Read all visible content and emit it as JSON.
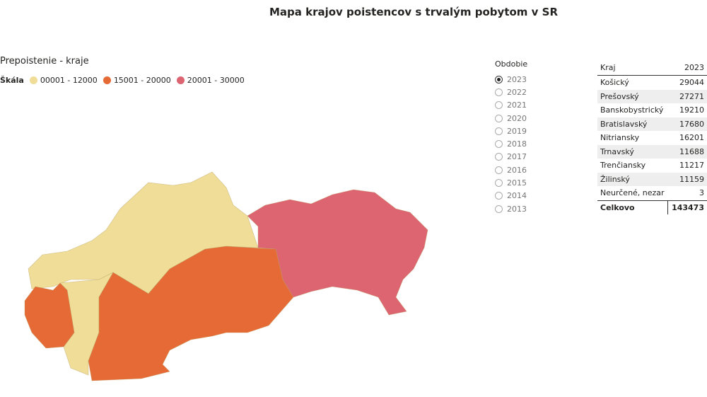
{
  "header": {
    "title": "Mapa krajov poistencov s trvalým pobytom v SR"
  },
  "map": {
    "title": "Prepoistenie - kraje",
    "scale_label": "Škála",
    "scale": [
      {
        "label": "00001 - 12000",
        "color": "#efdd98"
      },
      {
        "label": "15001 - 20000",
        "color": "#e66a35"
      },
      {
        "label": "20001 - 30000",
        "color": "#dd6471"
      }
    ]
  },
  "slicer": {
    "title": "Obdobie",
    "selected": "2023",
    "options": [
      "2023",
      "2022",
      "2021",
      "2020",
      "2019",
      "2018",
      "2017",
      "2016",
      "2015",
      "2014",
      "2013"
    ]
  },
  "table": {
    "columns": [
      "Kraj",
      "2023"
    ],
    "rows": [
      [
        "Košický",
        29044
      ],
      [
        "Prešovský",
        27271
      ],
      [
        "Banskobystrický",
        19210
      ],
      [
        "Bratislavský",
        17680
      ],
      [
        "Nitriansky",
        16201
      ],
      [
        "Trnavský",
        11688
      ],
      [
        "Trenčiansky",
        11217
      ],
      [
        "Žilinský",
        11159
      ],
      [
        "Neurčené, nezar",
        3
      ]
    ],
    "total": [
      "Celkovo",
      143473
    ]
  }
}
